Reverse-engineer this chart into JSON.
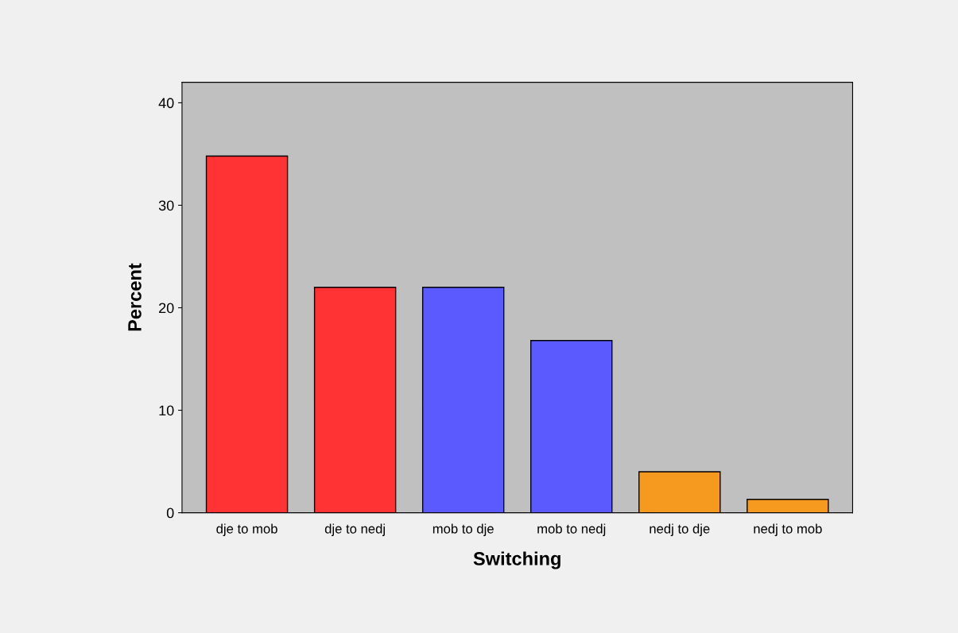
{
  "chart_data": {
    "type": "bar",
    "xlabel": "Switching",
    "ylabel": "Percent",
    "categories": [
      "dje to mob",
      "dje to nedj",
      "mob to dje",
      "mob to nedj",
      "nedj to dje",
      "nedj to mob"
    ],
    "values": [
      34.8,
      22.0,
      22.0,
      16.8,
      4.0,
      1.3
    ],
    "colors": [
      "#ff3333",
      "#ff3333",
      "#5a5aff",
      "#5a5aff",
      "#f59a1e",
      "#f59a1e"
    ],
    "ylim": [
      0,
      42
    ],
    "yticks": [
      0,
      10,
      20,
      30,
      40
    ],
    "grid": false
  }
}
